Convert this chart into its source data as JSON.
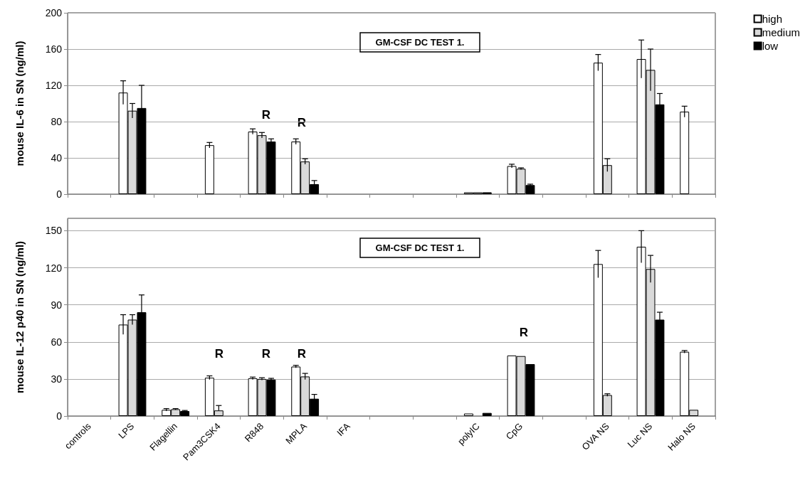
{
  "chart_data": [
    {
      "type": "bar",
      "title": "GM-CSF DC TEST 1.",
      "ylabel": "mouse IL-6 in SN (ng/ml)",
      "series": [
        {
          "name": "high",
          "color": "#ffffff",
          "values": [
            null,
            112,
            null,
            54,
            69,
            58,
            null,
            null,
            null,
            2,
            31,
            null,
            145,
            149,
            91
          ],
          "errors": [
            null,
            13,
            null,
            3,
            3,
            3,
            null,
            null,
            null,
            null,
            2,
            null,
            9,
            21,
            6
          ]
        },
        {
          "name": "medium",
          "color": "#d9d9d9",
          "values": [
            null,
            92,
            null,
            null,
            65,
            36,
            null,
            null,
            null,
            2,
            28,
            null,
            32,
            137,
            null
          ],
          "errors": [
            null,
            8,
            null,
            null,
            3,
            3,
            null,
            null,
            null,
            null,
            1,
            null,
            7,
            23,
            null
          ]
        },
        {
          "name": "low",
          "color": "#000000",
          "values": [
            null,
            95,
            null,
            null,
            58,
            11,
            null,
            null,
            null,
            2,
            10,
            null,
            null,
            99,
            null
          ],
          "errors": [
            null,
            25,
            null,
            null,
            3,
            4,
            null,
            null,
            null,
            null,
            1,
            null,
            null,
            12,
            null
          ]
        }
      ],
      "ylim": [
        0,
        200
      ],
      "yticks": [
        0,
        40,
        80,
        120,
        160,
        200
      ],
      "grid": "y",
      "legend": "top right",
      "tick_labels": "y",
      "annotations": [
        "R",
        "R"
      ]
    },
    {
      "type": "bar",
      "title": "GM-CSF DC TEST 1.",
      "ylabel": "mouse IL-12 p40 in SN (ng/ml)",
      "categories": [
        "controls",
        "LPS",
        "Flagellin",
        "Pam3CSK4",
        "R848",
        "MPLA",
        "IFA",
        null,
        null,
        "polyIC",
        "CpG",
        null,
        "OVA NS",
        "Luc NS",
        "Halo NS"
      ],
      "series": [
        {
          "color": "#ffffff",
          "values": [
            null,
            74,
            5,
            31,
            30.5,
            40,
            null,
            null,
            null,
            2,
            49,
            null,
            123,
            137,
            52
          ],
          "errors": [
            null,
            8,
            1,
            1.5,
            1,
            1,
            null,
            null,
            null,
            null,
            null,
            null,
            11,
            13,
            1
          ]
        },
        {
          "color": "#d9d9d9",
          "values": [
            null,
            78,
            5.5,
            4.5,
            30,
            32,
            null,
            null,
            null,
            null,
            48.5,
            null,
            17,
            119,
            5
          ],
          "errors": [
            null,
            4,
            0.5,
            [
              4.5,
              8.5
            ],
            1,
            2.5,
            null,
            null,
            null,
            null,
            null,
            null,
            1,
            11,
            null
          ]
        },
        {
          "color": "#000000",
          "values": [
            null,
            84,
            4,
            null,
            29.5,
            14,
            null,
            null,
            null,
            2.5,
            42,
            null,
            null,
            78,
            null
          ],
          "errors": [
            null,
            14,
            0.5,
            null,
            1,
            3.5,
            null,
            null,
            null,
            null,
            null,
            null,
            null,
            6,
            null
          ]
        }
      ],
      "ylim": [
        0,
        160
      ],
      "yticks": [
        0,
        30,
        60,
        90,
        120,
        150
      ],
      "grid": "y",
      "legend": false,
      "annotations": [
        "R",
        "R",
        "R",
        "R"
      ]
    }
  ]
}
